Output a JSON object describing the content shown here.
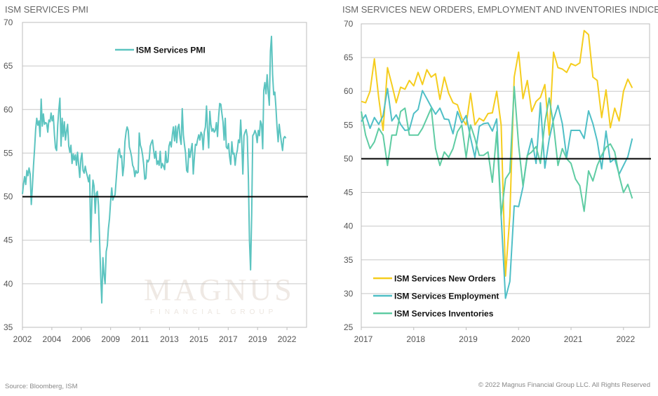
{
  "watermark": {
    "logo_text": "MAGNUS",
    "logo_subtext": "FINANCIAL GROUP"
  },
  "footer": {
    "source": "Source: Bloomberg, ISM",
    "copyright": "© 2022 Magnus Financial Group LLC. All Rights Reserved"
  },
  "chart_data": [
    {
      "type": "line",
      "title": "ISM SERVICES PMI",
      "x_start": "2002-01",
      "x_frequency": "monthly",
      "x_tick_labels": [
        "2002",
        "2004",
        "2006",
        "2009",
        "2011",
        "2013",
        "2015",
        "2017",
        "2019",
        "2022"
      ],
      "ylim": [
        35,
        70
      ],
      "y_ticks": [
        35,
        40,
        45,
        50,
        55,
        60,
        65,
        70
      ],
      "reference_line": 50,
      "grid": "horizontal",
      "legend_placement": "top-center",
      "series": [
        {
          "name": "ISM Services PMI",
          "color": "#5cc4c0",
          "values": [
            50.3,
            51.5,
            52.3,
            51.4,
            53.0,
            52.4,
            53.3,
            52.6,
            49.1,
            51.0,
            53.5,
            55.5,
            57.8,
            59.0,
            58.2,
            58.7,
            56.9,
            61.2,
            58.1,
            59.5,
            58.3,
            58.5,
            58.4,
            57.4,
            58.8,
            58.6,
            59.6,
            58.7,
            59.3,
            57.1,
            55.6,
            55.3,
            58.2,
            59.9,
            61.3,
            55.8,
            59.0,
            56.9,
            58.6,
            56.5,
            57.5,
            58.3,
            55.8,
            55.1,
            55.9,
            53.8,
            54.9,
            54.2,
            54.8,
            53.6,
            55.1,
            53.7,
            52.2,
            54.3,
            55.0,
            53.0,
            52.7,
            53.5,
            52.8,
            52.3,
            51.7,
            52.5,
            44.8,
            49.5,
            51.9,
            51.2,
            48.1,
            50.4,
            50.6,
            49.0,
            45.0,
            41.0,
            37.8,
            43.0,
            41.0,
            40.0,
            43.7,
            44.4,
            46.3,
            47.5,
            49.5,
            51.0,
            49.6,
            50.0,
            50.2,
            51.8,
            53.5,
            55.2,
            55.5,
            54.5,
            54.7,
            52.4,
            53.5,
            56.3,
            57.4,
            58.0,
            57.6,
            55.7,
            55.2,
            54.6,
            53.6,
            53.3,
            52.3,
            53.0,
            52.7,
            52.8,
            57.3,
            55.9,
            55.5,
            54.8,
            53.7,
            52.0,
            52.1,
            54.2,
            54.0,
            54.3,
            55.8,
            56.2,
            56.5,
            55.4,
            54.4,
            55.2,
            53.7,
            54.1,
            53.6,
            55.2,
            53.3,
            53.8,
            53.5,
            53.1,
            55.2,
            53.9,
            54.0,
            55.8,
            56.3,
            55.7,
            57.1,
            58.0,
            56.4,
            58.1,
            56.2,
            57.9,
            58.3,
            56.7,
            56.0,
            60.1,
            57.1,
            56.0,
            55.0,
            53.0,
            52.8,
            55.5,
            54.5,
            55.4,
            56.1,
            52.6,
            54.5,
            56.0,
            55.9,
            56.6,
            57.1,
            56.5,
            57.4,
            57.1,
            55.4,
            57.4,
            58.0,
            60.4,
            57.6,
            55.6,
            59.8,
            58.3,
            57.5,
            57.8,
            57.4,
            57.6,
            58.5,
            56.9,
            59.1,
            60.7,
            60.6,
            59.5,
            58.6,
            56.5,
            59.0,
            55.7,
            55.5,
            56.1,
            54.6,
            53.7,
            56.3,
            54.9,
            55.0,
            53.6,
            54.8,
            55.3,
            56.5,
            56.2,
            58.8,
            56.3,
            52.6,
            57.0,
            57.4,
            57.7,
            56.9,
            52.1,
            45.0,
            41.6,
            48.0,
            57.0,
            57.2,
            57.6,
            57.2,
            56.2,
            57.6,
            57.0,
            58.7,
            58.3,
            55.5,
            62.2,
            63.1,
            61.8,
            64.0,
            62.0,
            60.5,
            66.7,
            68.4,
            64.0,
            61.7,
            62.0,
            60.3,
            58.0,
            56.3,
            58.3,
            57.2,
            56.2,
            55.3,
            56.7,
            56.9,
            56.7
          ]
        }
      ]
    },
    {
      "type": "line",
      "title": "ISM SERVICES NEW ORDERS, EMPLOYMENT AND INVENTORIES INDICES",
      "x_start": "2017-01",
      "x_frequency": "monthly",
      "x_tick_labels": [
        "2017",
        "2018",
        "2019",
        "2020",
        "2021",
        "2022"
      ],
      "ylim": [
        25,
        70
      ],
      "y_ticks": [
        25,
        30,
        35,
        40,
        45,
        50,
        55,
        60,
        65,
        70
      ],
      "reference_line": 50,
      "grid": "horizontal",
      "legend_placement": "bottom-left",
      "series": [
        {
          "name": "ISM Services New Orders",
          "color": "#f5cd1e",
          "values": [
            58.5,
            58.3,
            60,
            64.8,
            59,
            54.2,
            63.5,
            61,
            58.3,
            60.6,
            60.3,
            61.6,
            60.8,
            62.8,
            61,
            63.2,
            62.1,
            62.6,
            58.8,
            62.1,
            59.7,
            58.3,
            58,
            56,
            55,
            59.7,
            55,
            56,
            55.6,
            56.7,
            56.8,
            60,
            55,
            32.6,
            41.5,
            62.1,
            65.8,
            58.9,
            61.6,
            57,
            58.5,
            59.1,
            61,
            53.5,
            65.8,
            63.5,
            63.3,
            62.8,
            64.1,
            63.8,
            64.2,
            69,
            68.4,
            62.1,
            61.6,
            56.1,
            60.2,
            54.6,
            57.5,
            55.6,
            60,
            61.8,
            60.5
          ]
        },
        {
          "name": "ISM Services Employment",
          "color": "#4fbfc6",
          "values": [
            55.5,
            56.5,
            54.5,
            56.1,
            55.1,
            56.4,
            60.4,
            55.6,
            56.5,
            55.1,
            54.2,
            54.3,
            56.7,
            57.3,
            60.1,
            58.9,
            57.7,
            56.6,
            57.5,
            55.9,
            55.8,
            53.7,
            57.0,
            55.3,
            56.4,
            53.1,
            50.2,
            54.8,
            55.2,
            55.3,
            54.1,
            55.9,
            41.5,
            29.3,
            31.8,
            43,
            42.9,
            45.8,
            50.4,
            53,
            49.3,
            58.3,
            48.6,
            52.9,
            55.8,
            57.9,
            55.2,
            50.2,
            54.2,
            54.2,
            54.2,
            53,
            57.1,
            55.2,
            52.6,
            48.5,
            54.1,
            49.5,
            50,
            47.7,
            49,
            50.3,
            53
          ]
        },
        {
          "name": "ISM Services Inventories",
          "color": "#5fcca3",
          "values": [
            57,
            53.5,
            51.5,
            52.5,
            54.5,
            53.5,
            49,
            53.5,
            53.5,
            57,
            57.5,
            53.5,
            53.5,
            53.5,
            54.5,
            56,
            57.5,
            51.5,
            49,
            51,
            50.2,
            51.5,
            54,
            55,
            50.2,
            55,
            53,
            50.5,
            50.5,
            51,
            46.5,
            54,
            41.5,
            47,
            48,
            60.7,
            52,
            46,
            50.5,
            51,
            51.8,
            49.3,
            55.4,
            59,
            55,
            49,
            51.5,
            50,
            49.3,
            47,
            46,
            42.2,
            48.2,
            46.7,
            49,
            50.5,
            51.7,
            52.2,
            51,
            47.5,
            45,
            46.2,
            44.1
          ]
        }
      ]
    }
  ]
}
